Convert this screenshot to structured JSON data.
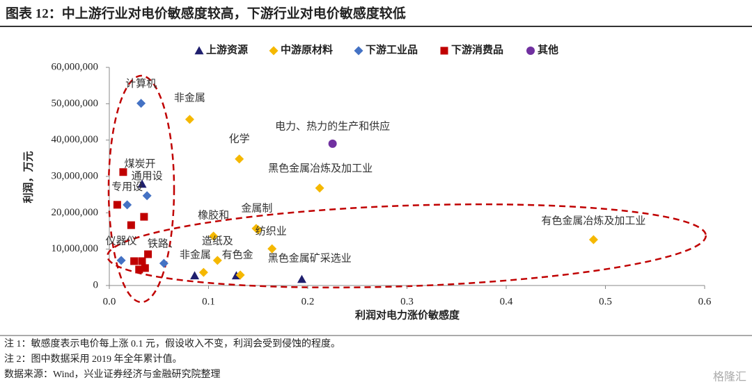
{
  "chart_data": {
    "type": "scatter",
    "title": "图表 12：中上游行业对电价敏感度较高，下游行业对电价敏感度较低",
    "x_label": "利润对电力涨价敏感度",
    "y_label": "利润，万元",
    "xlim": [
      0,
      0.6
    ],
    "xticks": [
      {
        "value": 0,
        "label": "0.0"
      },
      0.1,
      0.2,
      0.3,
      0.4,
      0.5,
      0.6
    ],
    "ylim": [
      0,
      60000000
    ],
    "yticks": [
      0,
      {
        "value": 10000000,
        "label": "10,000,000"
      },
      {
        "value": 20000000,
        "label": "20,000,000"
      },
      {
        "value": 30000000,
        "label": "30,000,000"
      },
      {
        "value": 40000000,
        "label": "40,000,000"
      },
      {
        "value": 50000000,
        "label": "50,000,000"
      },
      {
        "value": 60000000,
        "label": "60,000,000"
      }
    ],
    "grid": false,
    "legend": "top",
    "series": [
      {
        "name": "上游资源",
        "color": "#1f1f6e",
        "marker": "triangle",
        "x": [
          0.086,
          0.033,
          0.128,
          0.194
        ],
        "values": [
          2700000,
          27900000,
          2700000,
          1700000
        ],
        "labels": [
          null,
          "煤炭开",
          null,
          null
        ]
      },
      {
        "name": "中游原材料",
        "color": "#f5b800",
        "marker": "diamond",
        "x": [
          0.081,
          0.131,
          0.212,
          0.105,
          0.148,
          0.15,
          0.109,
          0.132,
          0.095,
          0.164,
          0.488
        ],
        "values": [
          45700000,
          34800000,
          26800000,
          13600000,
          15700000,
          15300000,
          6900000,
          2900000,
          3600000,
          10100000,
          12600000
        ],
        "labels": [
          "非金属",
          "化学",
          "黑色金属冶炼及加工业",
          "橡胶和",
          "金属制",
          "纺织业",
          "造纸及",
          "有色金",
          "非金属",
          "黑色金属矿采选业",
          "有色金属冶炼及加工业"
        ]
      },
      {
        "name": "下游工业品",
        "color": "#4472c4",
        "marker": "diamond",
        "x": [
          0.032,
          0.038,
          0.018,
          0.012,
          0.055
        ],
        "values": [
          50100000,
          24700000,
          22200000,
          6900000,
          6100000
        ],
        "labels": [
          "计算机",
          "通用设",
          "专用设",
          "仪器仪",
          "铁路、"
        ]
      },
      {
        "name": "下游消费品",
        "color": "#c00000",
        "marker": "square",
        "x": [
          0.014,
          0.008,
          0.022,
          0.035,
          0.039,
          0.025,
          0.033,
          0.03,
          0.036
        ],
        "values": [
          31200000,
          22200000,
          16600000,
          18900000,
          8600000,
          6700000,
          6700000,
          4400000,
          4800000
        ],
        "labels": [
          null,
          null,
          null,
          null,
          null,
          null,
          null,
          null,
          null
        ]
      },
      {
        "name": "其他",
        "color": "#7030a0",
        "marker": "circle",
        "x": [
          0.225
        ],
        "values": [
          39000000
        ],
        "labels": [
          "电力、热力的生产和供应"
        ]
      }
    ],
    "notes": [
      "注 1：敏感度表示电价每上涨 0.1 元，假设收入不变，利润会受到侵蚀的程度。",
      "注 2：图中数据采用 2019 年全年累计值。",
      "数据来源：Wind，兴业证券经济与金融研究院整理"
    ],
    "watermark": "格隆汇"
  }
}
